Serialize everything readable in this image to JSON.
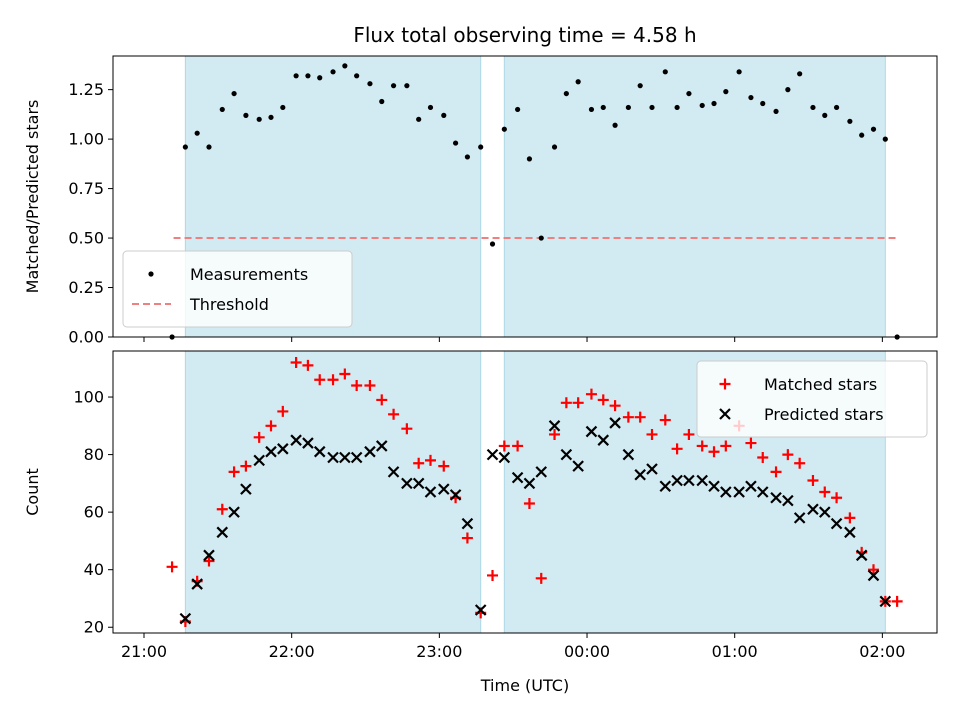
{
  "chart_data": {
    "type": "scatter",
    "title": "Flux total observing time = 4.58 h",
    "xlabel": "Time (UTC)",
    "x_ticks": [
      {
        "label": "21:00",
        "h": 21.0
      },
      {
        "label": "22:00",
        "h": 22.0
      },
      {
        "label": "23:00",
        "h": 23.0
      },
      {
        "label": "00:00",
        "h": 24.0
      },
      {
        "label": "01:00",
        "h": 25.0
      },
      {
        "label": "02:00",
        "h": 26.0
      }
    ],
    "xlim_h": [
      20.79,
      26.37
    ],
    "shaded_intervals_h": [
      [
        21.28,
        23.28
      ],
      [
        23.44,
        26.02
      ]
    ],
    "panels": [
      {
        "ylabel": "Matched/Predicted stars",
        "ylim": [
          0,
          1.42
        ],
        "yticks": [
          0.0,
          0.25,
          0.5,
          0.75,
          1.0,
          1.25
        ],
        "ytick_labels": [
          "0.00",
          "0.25",
          "0.50",
          "0.75",
          "1.00",
          "1.25"
        ],
        "threshold": {
          "value": 0.5,
          "x_range_h": [
            21.2,
            26.1
          ],
          "color": "#f08080"
        },
        "legend": {
          "position": "lower-left",
          "entries": [
            "Measurements",
            "Threshold"
          ]
        },
        "series": [
          {
            "name": "Measurements",
            "color": "#000000",
            "marker": "dot",
            "points": [
              [
                21.19,
                0.0
              ],
              [
                21.28,
                0.96
              ],
              [
                21.36,
                1.03
              ],
              [
                21.44,
                0.96
              ],
              [
                21.53,
                1.15
              ],
              [
                21.61,
                1.23
              ],
              [
                21.69,
                1.12
              ],
              [
                21.78,
                1.1
              ],
              [
                21.86,
                1.11
              ],
              [
                21.94,
                1.16
              ],
              [
                22.03,
                1.32
              ],
              [
                22.11,
                1.32
              ],
              [
                22.19,
                1.31
              ],
              [
                22.28,
                1.34
              ],
              [
                22.36,
                1.37
              ],
              [
                22.44,
                1.32
              ],
              [
                22.53,
                1.28
              ],
              [
                22.61,
                1.19
              ],
              [
                22.69,
                1.27
              ],
              [
                22.78,
                1.27
              ],
              [
                22.86,
                1.1
              ],
              [
                22.94,
                1.16
              ],
              [
                23.03,
                1.12
              ],
              [
                23.11,
                0.98
              ],
              [
                23.19,
                0.91
              ],
              [
                23.28,
                0.96
              ],
              [
                23.36,
                0.47
              ],
              [
                23.44,
                1.05
              ],
              [
                23.53,
                1.15
              ],
              [
                23.61,
                0.9
              ],
              [
                23.69,
                0.5
              ],
              [
                23.78,
                0.96
              ],
              [
                23.86,
                1.23
              ],
              [
                23.94,
                1.29
              ],
              [
                24.03,
                1.15
              ],
              [
                24.11,
                1.16
              ],
              [
                24.19,
                1.07
              ],
              [
                24.28,
                1.16
              ],
              [
                24.36,
                1.27
              ],
              [
                24.44,
                1.16
              ],
              [
                24.53,
                1.34
              ],
              [
                24.61,
                1.16
              ],
              [
                24.69,
                1.23
              ],
              [
                24.78,
                1.17
              ],
              [
                24.86,
                1.18
              ],
              [
                24.94,
                1.24
              ],
              [
                25.03,
                1.34
              ],
              [
                25.11,
                1.21
              ],
              [
                25.19,
                1.18
              ],
              [
                25.28,
                1.14
              ],
              [
                25.36,
                1.25
              ],
              [
                25.44,
                1.33
              ],
              [
                25.53,
                1.16
              ],
              [
                25.61,
                1.12
              ],
              [
                25.69,
                1.16
              ],
              [
                25.78,
                1.09
              ],
              [
                25.86,
                1.02
              ],
              [
                25.94,
                1.05
              ],
              [
                26.02,
                1.0
              ],
              [
                26.1,
                0.0
              ]
            ]
          }
        ]
      },
      {
        "ylabel": "Count",
        "ylim": [
          18,
          116
        ],
        "yticks": [
          20,
          40,
          60,
          80,
          100
        ],
        "ytick_labels": [
          "20",
          "40",
          "60",
          "80",
          "100"
        ],
        "legend": {
          "position": "upper-right",
          "entries": [
            "Matched stars",
            "Predicted stars"
          ]
        },
        "series": [
          {
            "name": "Matched stars",
            "color": "#ff0000",
            "marker": "plus",
            "points": [
              [
                21.19,
                41
              ],
              [
                21.28,
                22
              ],
              [
                21.36,
                36
              ],
              [
                21.44,
                43
              ],
              [
                21.53,
                61
              ],
              [
                21.61,
                74
              ],
              [
                21.69,
                76
              ],
              [
                21.78,
                86
              ],
              [
                21.86,
                90
              ],
              [
                21.94,
                95
              ],
              [
                22.03,
                112
              ],
              [
                22.11,
                111
              ],
              [
                22.19,
                106
              ],
              [
                22.28,
                106
              ],
              [
                22.36,
                108
              ],
              [
                22.44,
                104
              ],
              [
                22.53,
                104
              ],
              [
                22.61,
                99
              ],
              [
                22.69,
                94
              ],
              [
                22.78,
                89
              ],
              [
                22.86,
                77
              ],
              [
                22.94,
                78
              ],
              [
                23.03,
                76
              ],
              [
                23.11,
                65
              ],
              [
                23.19,
                51
              ],
              [
                23.28,
                25
              ],
              [
                23.36,
                38
              ],
              [
                23.44,
                83
              ],
              [
                23.53,
                83
              ],
              [
                23.61,
                63
              ],
              [
                23.69,
                37
              ],
              [
                23.78,
                87
              ],
              [
                23.86,
                98
              ],
              [
                23.94,
                98
              ],
              [
                24.03,
                101
              ],
              [
                24.11,
                99
              ],
              [
                24.19,
                97
              ],
              [
                24.28,
                93
              ],
              [
                24.36,
                93
              ],
              [
                24.44,
                87
              ],
              [
                24.53,
                92
              ],
              [
                24.61,
                82
              ],
              [
                24.69,
                87
              ],
              [
                24.78,
                83
              ],
              [
                24.86,
                81
              ],
              [
                24.94,
                83
              ],
              [
                25.03,
                90
              ],
              [
                25.11,
                84
              ],
              [
                25.19,
                79
              ],
              [
                25.28,
                74
              ],
              [
                25.36,
                80
              ],
              [
                25.44,
                77
              ],
              [
                25.53,
                71
              ],
              [
                25.61,
                67
              ],
              [
                25.69,
                65
              ],
              [
                25.78,
                58
              ],
              [
                25.86,
                46
              ],
              [
                25.94,
                40
              ],
              [
                26.02,
                29
              ],
              [
                26.1,
                29
              ]
            ]
          },
          {
            "name": "Predicted stars",
            "color": "#000000",
            "marker": "x",
            "points": [
              [
                21.28,
                23
              ],
              [
                21.36,
                35
              ],
              [
                21.44,
                45
              ],
              [
                21.53,
                53
              ],
              [
                21.61,
                60
              ],
              [
                21.69,
                68
              ],
              [
                21.78,
                78
              ],
              [
                21.86,
                81
              ],
              [
                21.94,
                82
              ],
              [
                22.03,
                85
              ],
              [
                22.11,
                84
              ],
              [
                22.19,
                81
              ],
              [
                22.28,
                79
              ],
              [
                22.36,
                79
              ],
              [
                22.44,
                79
              ],
              [
                22.53,
                81
              ],
              [
                22.61,
                83
              ],
              [
                22.69,
                74
              ],
              [
                22.78,
                70
              ],
              [
                22.86,
                70
              ],
              [
                22.94,
                67
              ],
              [
                23.03,
                68
              ],
              [
                23.11,
                66
              ],
              [
                23.19,
                56
              ],
              [
                23.28,
                26
              ],
              [
                23.36,
                80
              ],
              [
                23.44,
                79
              ],
              [
                23.53,
                72
              ],
              [
                23.61,
                70
              ],
              [
                23.69,
                74
              ],
              [
                23.78,
                90
              ],
              [
                23.86,
                80
              ],
              [
                23.94,
                76
              ],
              [
                24.03,
                88
              ],
              [
                24.11,
                85
              ],
              [
                24.19,
                91
              ],
              [
                24.28,
                80
              ],
              [
                24.36,
                73
              ],
              [
                24.44,
                75
              ],
              [
                24.53,
                69
              ],
              [
                24.61,
                71
              ],
              [
                24.69,
                71
              ],
              [
                24.78,
                71
              ],
              [
                24.86,
                69
              ],
              [
                24.94,
                67
              ],
              [
                25.03,
                67
              ],
              [
                25.11,
                69
              ],
              [
                25.19,
                67
              ],
              [
                25.28,
                65
              ],
              [
                25.36,
                64
              ],
              [
                25.44,
                58
              ],
              [
                25.53,
                61
              ],
              [
                25.61,
                60
              ],
              [
                25.69,
                56
              ],
              [
                25.78,
                53
              ],
              [
                25.86,
                45
              ],
              [
                25.94,
                38
              ],
              [
                26.02,
                29
              ]
            ]
          }
        ]
      }
    ],
    "shade_color": "#add8e6",
    "threshold_label": "Threshold"
  }
}
